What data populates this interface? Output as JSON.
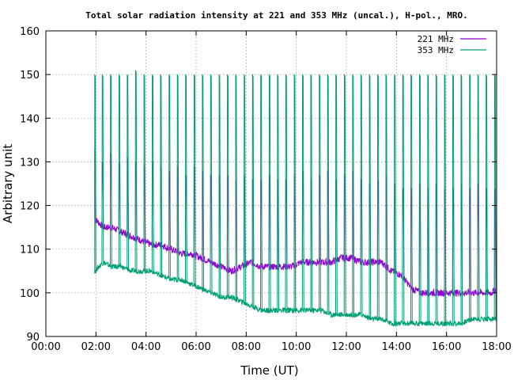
{
  "chart_data": {
    "type": "line",
    "title": "Total solar radiation intensity at 221 and 353 MHz (uncal.), H-pol., MRO.",
    "xlabel": "Time (UT)",
    "ylabel": "Arbitrary unit",
    "xlim": [
      0,
      18
    ],
    "ylim": [
      90,
      160
    ],
    "xticks": [
      0,
      2,
      4,
      6,
      8,
      10,
      12,
      14,
      16,
      18
    ],
    "xtick_labels": [
      "00:00",
      "02:00",
      "04:00",
      "06:00",
      "08:00",
      "10:00",
      "12:00",
      "14:00",
      "16:00",
      "18:00"
    ],
    "yticks": [
      90,
      100,
      110,
      120,
      130,
      140,
      150,
      160
    ],
    "ytick_labels": [
      "90",
      "100",
      "110",
      "120",
      "130",
      "140",
      "150",
      "160"
    ],
    "grid": true,
    "legend_position": "top-right",
    "series": [
      {
        "name": "221 MHz",
        "color": "#9400d3",
        "x": [
          1.95,
          2.3,
          2.6,
          3.0,
          3.4,
          3.8,
          4.2,
          4.6,
          5.0,
          5.4,
          5.8,
          6.2,
          6.6,
          7.0,
          7.4,
          7.8,
          8.2,
          8.6,
          9.0,
          9.4,
          9.8,
          10.2,
          10.6,
          11.0,
          11.4,
          11.8,
          12.2,
          12.6,
          13.0,
          13.4,
          13.8,
          14.2,
          14.6,
          15.0,
          15.4,
          15.8,
          16.2,
          16.6,
          17.0,
          17.4,
          17.8,
          18.0
        ],
        "values": [
          117,
          115,
          115,
          114,
          113,
          112,
          111,
          111,
          110,
          109,
          109,
          108,
          107,
          106,
          105,
          106,
          107,
          106,
          106,
          106,
          106,
          107,
          107,
          107,
          107,
          108,
          108,
          107,
          107,
          107,
          105,
          104,
          101,
          100,
          100,
          100,
          100,
          100,
          100,
          100,
          100,
          101
        ]
      },
      {
        "name": "353 MHz",
        "color": "#009e73",
        "x": [
          1.95,
          2.3,
          2.6,
          3.0,
          3.4,
          3.8,
          4.2,
          4.6,
          5.0,
          5.4,
          5.8,
          6.2,
          6.6,
          7.0,
          7.4,
          7.8,
          8.2,
          8.6,
          9.0,
          9.4,
          9.8,
          10.2,
          10.6,
          11.0,
          11.4,
          11.8,
          12.2,
          12.6,
          13.0,
          13.4,
          13.8,
          14.2,
          14.6,
          15.0,
          15.4,
          15.8,
          16.2,
          16.6,
          17.0,
          17.4,
          17.8,
          18.0
        ],
        "values": [
          105,
          107,
          106,
          106,
          105,
          105,
          105,
          104,
          103,
          103,
          102,
          101,
          100,
          99,
          99,
          98,
          97,
          96,
          96,
          96,
          96,
          96,
          96,
          96,
          95,
          95,
          95,
          95,
          94,
          94,
          93,
          93,
          93,
          93,
          93,
          93,
          93,
          93,
          94,
          94,
          94,
          94
        ]
      }
    ],
    "calibration_spikes": {
      "x": [
        1.95,
        2.25,
        2.58,
        2.92,
        3.25,
        3.58,
        3.92,
        4.25,
        4.58,
        4.92,
        5.25,
        5.58,
        5.92,
        6.25,
        6.58,
        6.92,
        7.25,
        7.58,
        7.92,
        8.25,
        8.58,
        8.92,
        9.25,
        9.58,
        9.92,
        10.25,
        10.58,
        10.92,
        11.25,
        11.58,
        11.92,
        12.25,
        12.58,
        12.92,
        13.25,
        13.58,
        13.92,
        14.25,
        14.58,
        14.92,
        15.25,
        15.58,
        15.92,
        16.25,
        16.58,
        16.92,
        17.25,
        17.58,
        17.92
      ],
      "peak_221": [
        133,
        130,
        132,
        130,
        131,
        130,
        129,
        130,
        129,
        128,
        129,
        127,
        129,
        128,
        127,
        127,
        127,
        126,
        127,
        126,
        126,
        127,
        126,
        126,
        127,
        128,
        126,
        127,
        128,
        126,
        127,
        128,
        126,
        125,
        126,
        127,
        125,
        124,
        124,
        125,
        124,
        125,
        124,
        124,
        125,
        124,
        125,
        124,
        124
      ],
      "peak_353": [
        150,
        150,
        150,
        150,
        150,
        151,
        150,
        150,
        150,
        150,
        150,
        150,
        150,
        150,
        150,
        150,
        150,
        150,
        150,
        150,
        150,
        150,
        150,
        150,
        150,
        150,
        150,
        150,
        150,
        150,
        150,
        150,
        150,
        150,
        150,
        150,
        150,
        150,
        150,
        150,
        150,
        150,
        150,
        150,
        150,
        150,
        150,
        150,
        150
      ]
    }
  }
}
